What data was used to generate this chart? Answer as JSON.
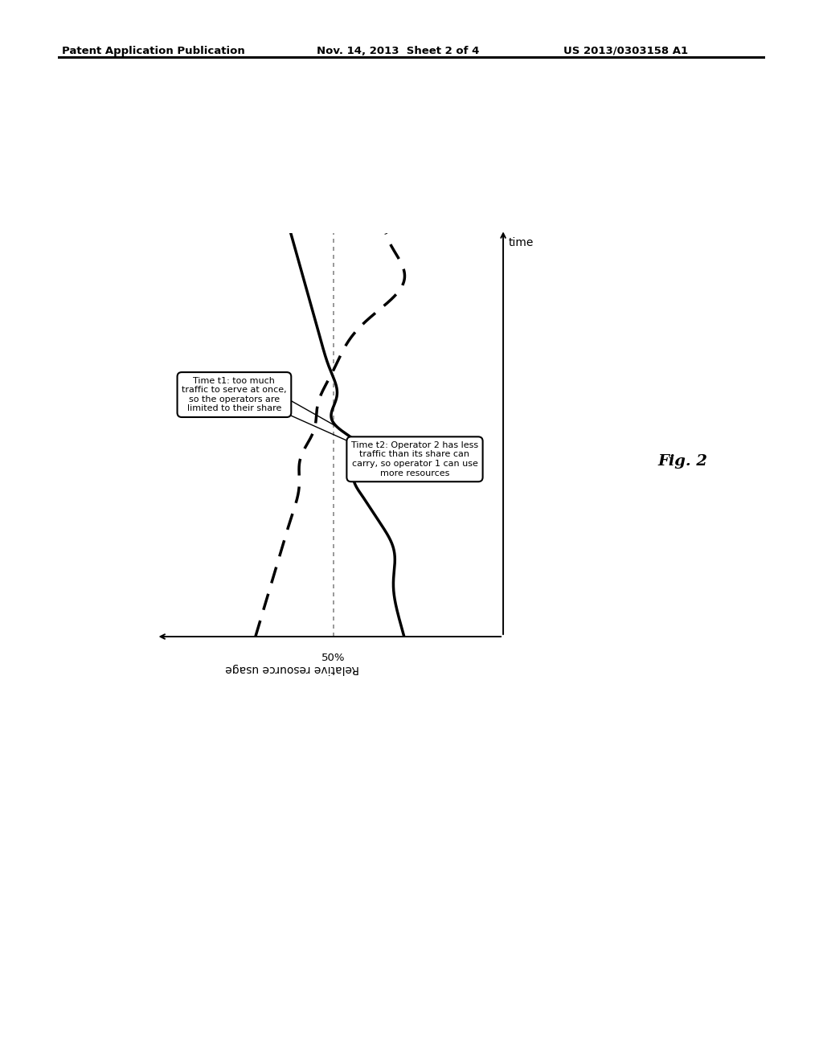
{
  "header_left": "Patent Application Publication",
  "header_center": "Nov. 14, 2013  Sheet 2 of 4",
  "header_right": "US 2013/0303158 A1",
  "fig_label": "Fig. 2",
  "ylabel": "time",
  "fifty_label": "50%",
  "xlabel": "Relative resource usage",
  "annotation1": "Time t1: too much\ntraffic to serve at once,\nso the operators are\nlimited to their share",
  "annotation2": "Time t2: Operator 2 has less\ntraffic than its share can\ncarry, so operator 1 can use\nmore resources",
  "bg_color": "#ffffff",
  "line_color": "#000000"
}
